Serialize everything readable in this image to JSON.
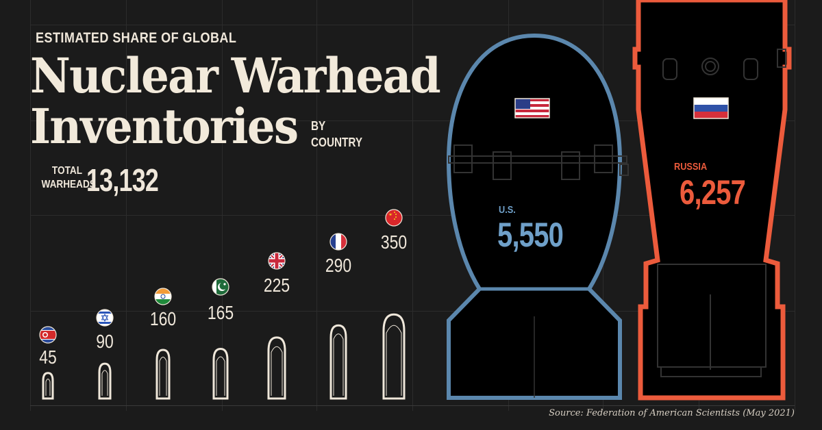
{
  "header": {
    "subtitle": "ESTIMATED SHARE OF GLOBAL",
    "title_line1": "Nuclear Warhead",
    "title_line2": "Inventories",
    "by_line1": "BY",
    "by_line2": "COUNTRY",
    "total_label_line1": "TOTAL",
    "total_label_line2": "WARHEADS",
    "total_value": "13,132"
  },
  "source": "Source: Federation of American Scientists (May 2021)",
  "colors": {
    "background": "#1b1b1b",
    "text": "#efe7da",
    "us": "#5b87ad",
    "russia": "#ec5b3c"
  },
  "chart_data": {
    "type": "bar",
    "title": "Nuclear Warhead Inventories",
    "categories": [
      "North Korea",
      "Israel",
      "India",
      "Pakistan",
      "U.K.",
      "France",
      "China",
      "U.S.",
      "Russia"
    ],
    "values": [
      45,
      90,
      160,
      165,
      225,
      290,
      350,
      5550,
      6257
    ],
    "value_labels": [
      "45",
      "90",
      "160",
      "165",
      "225",
      "290",
      "350",
      "5,550",
      "6,257"
    ],
    "printed_names": {
      "us": "U.S.",
      "russia": "RUSSIA"
    },
    "flag_icons": [
      "north-korea-flag-icon",
      "israel-flag-icon",
      "india-flag-icon",
      "pakistan-flag-icon",
      "uk-flag-icon",
      "france-flag-icon",
      "china-flag-icon",
      "us-flag-icon",
      "russia-flag-icon"
    ],
    "total": 13132
  }
}
